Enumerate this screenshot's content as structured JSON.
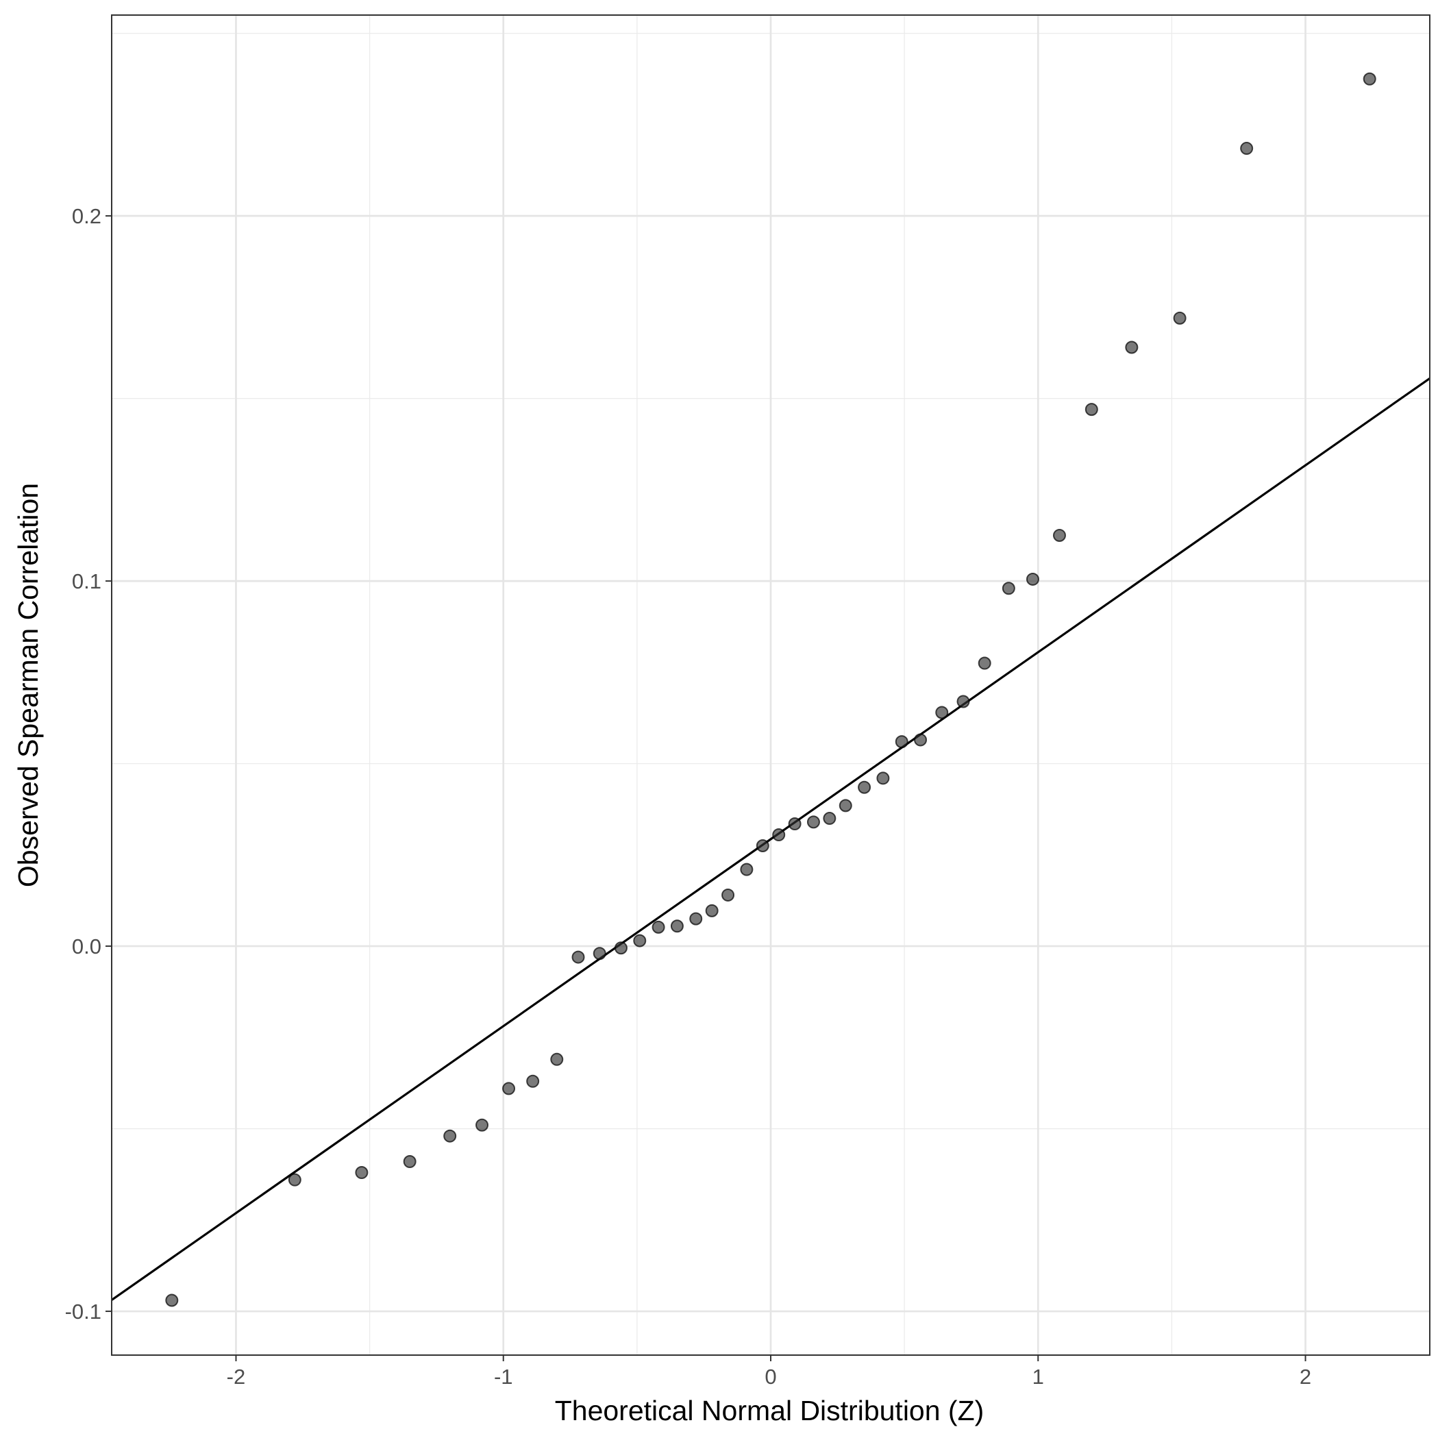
{
  "chart_data": {
    "type": "scatter",
    "title": "",
    "xlabel": "Theoretical Normal Distribution (Z)",
    "ylabel": "Observed Spearman Correlation",
    "xlim": [
      -2.465,
      2.465
    ],
    "ylim": [
      -0.112,
      0.255
    ],
    "x_ticks": [
      -2,
      -1,
      0,
      1,
      2
    ],
    "x_tick_labels": [
      "-2",
      "-1",
      "0",
      "1",
      "2"
    ],
    "y_ticks": [
      -0.1,
      0.0,
      0.1,
      0.2
    ],
    "y_tick_labels": [
      "-0.1",
      "0.0",
      "0.1",
      "0.2"
    ],
    "grid": true,
    "points": {
      "x": [
        -2.24,
        -1.78,
        -1.53,
        -1.35,
        -1.2,
        -1.08,
        -0.98,
        -0.89,
        -0.8,
        -0.72,
        -0.64,
        -0.56,
        -0.49,
        -0.42,
        -0.35,
        -0.28,
        -0.22,
        -0.16,
        -0.09,
        -0.03,
        0.03,
        0.09,
        0.16,
        0.22,
        0.28,
        0.35,
        0.42,
        0.49,
        0.56,
        0.64,
        0.72,
        0.8,
        0.89,
        0.98,
        1.08,
        1.2,
        1.35,
        1.53,
        1.78,
        2.24
      ],
      "y": [
        -0.097,
        -0.064,
        -0.062,
        -0.059,
        -0.052,
        -0.049,
        -0.039,
        -0.037,
        -0.031,
        -0.003,
        -0.002,
        -0.0005,
        0.0015,
        0.0052,
        0.0055,
        0.0075,
        0.0097,
        0.014,
        0.021,
        0.0275,
        0.0305,
        0.0335,
        0.034,
        0.035,
        0.0385,
        0.0435,
        0.046,
        0.056,
        0.0565,
        0.064,
        0.067,
        0.0775,
        0.098,
        0.1005,
        0.1125,
        0.147,
        0.164,
        0.172,
        0.2185,
        0.2375
      ],
      "color": "#333333",
      "opacity": 0.65
    },
    "reference_line": {
      "intercept": 0.0293,
      "slope": 0.0512,
      "color": "#000000"
    }
  }
}
